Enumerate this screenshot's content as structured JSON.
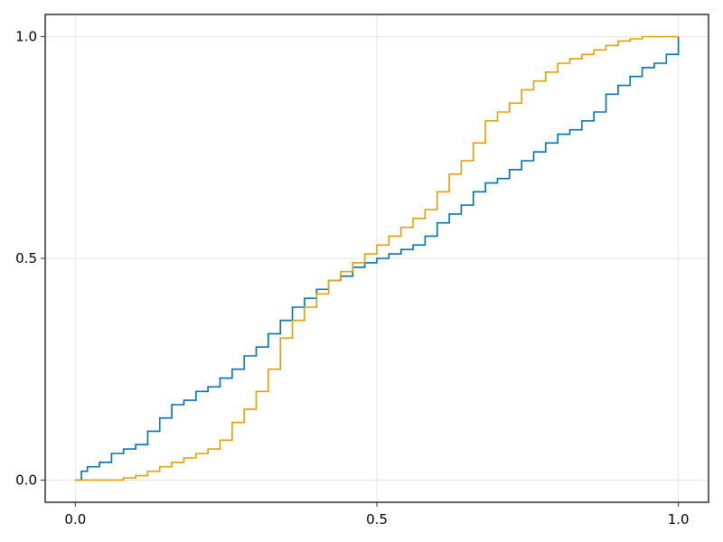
{
  "chart_data": {
    "type": "line",
    "step": true,
    "title": "",
    "xlabel": "",
    "ylabel": "",
    "xlim": [
      -0.05,
      1.05
    ],
    "ylim": [
      -0.05,
      1.05
    ],
    "grid": true,
    "legend": "none",
    "x_ticks": [
      {
        "value": 0.0,
        "label": "0.0"
      },
      {
        "value": 0.5,
        "label": "0.5"
      },
      {
        "value": 1.0,
        "label": "1.0"
      }
    ],
    "y_ticks": [
      {
        "value": 0.0,
        "label": "0.0"
      },
      {
        "value": 0.5,
        "label": "0.5"
      },
      {
        "value": 1.0,
        "label": "1.0"
      }
    ],
    "series": [
      {
        "color": "#0072b2",
        "x": [
          0.0,
          0.01,
          0.02,
          0.04,
          0.06,
          0.08,
          0.1,
          0.12,
          0.14,
          0.16,
          0.18,
          0.2,
          0.22,
          0.24,
          0.26,
          0.28,
          0.3,
          0.32,
          0.34,
          0.36,
          0.38,
          0.4,
          0.42,
          0.44,
          0.46,
          0.48,
          0.5,
          0.52,
          0.54,
          0.56,
          0.58,
          0.6,
          0.62,
          0.64,
          0.66,
          0.68,
          0.7,
          0.72,
          0.74,
          0.76,
          0.78,
          0.8,
          0.82,
          0.84,
          0.86,
          0.88,
          0.9,
          0.92,
          0.94,
          0.96,
          0.98,
          1.0
        ],
        "y": [
          0.0,
          0.02,
          0.03,
          0.04,
          0.06,
          0.07,
          0.08,
          0.11,
          0.14,
          0.17,
          0.18,
          0.2,
          0.21,
          0.23,
          0.25,
          0.28,
          0.3,
          0.33,
          0.36,
          0.39,
          0.41,
          0.43,
          0.45,
          0.46,
          0.48,
          0.49,
          0.5,
          0.51,
          0.52,
          0.53,
          0.55,
          0.58,
          0.6,
          0.62,
          0.65,
          0.67,
          0.68,
          0.7,
          0.72,
          0.74,
          0.76,
          0.78,
          0.79,
          0.81,
          0.83,
          0.87,
          0.89,
          0.91,
          0.93,
          0.94,
          0.96,
          1.0
        ]
      },
      {
        "color": "#e69f00",
        "x": [
          0.0,
          0.04,
          0.08,
          0.1,
          0.12,
          0.14,
          0.16,
          0.18,
          0.2,
          0.22,
          0.24,
          0.26,
          0.28,
          0.3,
          0.32,
          0.34,
          0.36,
          0.38,
          0.4,
          0.42,
          0.44,
          0.46,
          0.48,
          0.5,
          0.52,
          0.54,
          0.56,
          0.58,
          0.6,
          0.62,
          0.64,
          0.66,
          0.68,
          0.7,
          0.72,
          0.74,
          0.76,
          0.78,
          0.8,
          0.82,
          0.84,
          0.86,
          0.88,
          0.9,
          0.92,
          0.94,
          0.96,
          0.98,
          1.0
        ],
        "y": [
          0.0,
          0.0,
          0.005,
          0.01,
          0.02,
          0.03,
          0.04,
          0.05,
          0.06,
          0.07,
          0.09,
          0.13,
          0.16,
          0.2,
          0.25,
          0.32,
          0.36,
          0.39,
          0.42,
          0.45,
          0.47,
          0.49,
          0.51,
          0.53,
          0.55,
          0.57,
          0.59,
          0.61,
          0.65,
          0.69,
          0.72,
          0.76,
          0.81,
          0.83,
          0.85,
          0.88,
          0.9,
          0.92,
          0.94,
          0.95,
          0.96,
          0.97,
          0.98,
          0.99,
          0.995,
          1.0,
          1.0,
          1.0,
          1.0
        ]
      }
    ]
  }
}
